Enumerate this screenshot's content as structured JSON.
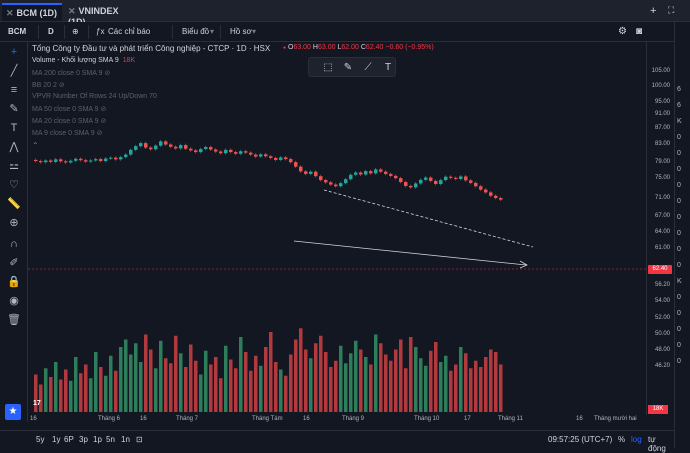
{
  "tabs": [
    {
      "label": "BCM (1D)",
      "active": true
    },
    {
      "label": "VNINDEX (1D)",
      "active": false
    }
  ],
  "topbar": {
    "add_icon": "+",
    "split_icon": "⛶"
  },
  "toolbar": {
    "symbol": "BCM",
    "interval": "D",
    "indicators_label": "Các chỉ báo",
    "chart_type_label": "Biểu đồ",
    "profile_label": "Hồ sơ"
  },
  "legend": {
    "title": "Tổng Công ty Đầu tư và phát triển Công nghiệp - CTCP · 1D · HSX",
    "o_key": "O",
    "o_val": "63.00",
    "h_key": "H",
    "h_val": "63.00",
    "l_key": "L",
    "l_val": "62.00",
    "c_key": "C",
    "c_val": "62.40",
    "change": "−0.60 (−0.95%)"
  },
  "indicators": [
    {
      "label": "Volume - Khối lượng SMA 9",
      "value": "18K",
      "active": true
    },
    {
      "label": "MA 200 close 0 SMA 9",
      "value": "",
      "active": false
    },
    {
      "label": "BB 20 2",
      "value": "",
      "active": false
    },
    {
      "label": "VPVR Number Of Rows 24 Up/Down 70",
      "value": "",
      "active": false
    },
    {
      "label": "MA 50 close 0 SMA 9",
      "value": "",
      "active": false
    },
    {
      "label": "MA 20 close 0 SMA 9",
      "value": "",
      "active": false
    },
    {
      "label": "MA 9 close 0 SMA 9",
      "value": "",
      "active": false
    }
  ],
  "price_axis": [
    "105.00",
    "100.00",
    "95.00",
    "91.00",
    "87.00",
    "83.00",
    "79.00",
    "75.00",
    "71.00",
    "67.00",
    "64.00",
    "61.00",
    "58.00",
    "56.20",
    "54.00",
    "52.00",
    "50.00",
    "48.00",
    "46.20"
  ],
  "current_price": "62.40",
  "volume_badge": "18K",
  "time_axis": [
    "16",
    "Tháng 6",
    "16",
    "Tháng 7",
    "Tháng Tám",
    "16",
    "Tháng 9",
    "Tháng 10",
    "17",
    "Tháng 11",
    "16",
    "Tháng mười hai"
  ],
  "bottom": {
    "ranges": [
      "5y",
      "1y",
      "6P",
      "3p",
      "1p",
      "5n",
      "1n"
    ],
    "clock": "09:57:25 (UTC+7)",
    "pct": "%",
    "log": "log",
    "auto": "tự động"
  },
  "right_strip": [
    "6",
    "6",
    "K",
    "0",
    "0",
    "0",
    "0",
    "0",
    "0",
    "0",
    "0",
    "0",
    "K",
    "0",
    "0",
    "0",
    "0",
    "0"
  ],
  "chart_data": {
    "type": "candlestick",
    "ylim": [
      44,
      107
    ],
    "up_color": "#26a69a",
    "down_color": "#ef5350",
    "close": [
      76.2,
      75.8,
      76.4,
      75.9,
      76.8,
      76.1,
      75.7,
      76.3,
      77.0,
      76.5,
      76.0,
      76.4,
      76.9,
      76.2,
      77.1,
      77.4,
      76.8,
      77.6,
      78.5,
      80.2,
      81.5,
      82.6,
      81.0,
      80.4,
      81.7,
      83.2,
      82.1,
      81.3,
      80.7,
      81.9,
      80.6,
      80.0,
      79.4,
      80.5,
      81.2,
      80.3,
      79.6,
      79.0,
      80.2,
      79.4,
      78.8,
      79.7,
      79.2,
      78.5,
      77.8,
      78.6,
      77.9,
      77.3,
      76.6,
      77.5,
      76.9,
      75.8,
      74.2,
      72.5,
      71.6,
      72.4,
      70.8,
      69.4,
      68.6,
      67.8,
      67.2,
      68.3,
      69.7,
      71.3,
      72.1,
      71.4,
      72.6,
      71.8,
      73.2,
      72.4,
      71.6,
      70.9,
      70.1,
      68.7,
      67.3,
      66.8,
      68.2,
      69.5,
      70.3,
      69.1,
      68.0,
      69.4,
      70.6,
      70.2,
      69.8,
      70.7,
      69.3,
      68.4,
      67.2,
      66.0,
      65.0,
      63.8,
      63.0,
      62.4
    ],
    "volume": [
      30,
      22,
      35,
      28,
      40,
      26,
      34,
      25,
      44,
      31,
      38,
      27,
      48,
      36,
      29,
      45,
      33,
      52,
      58,
      46,
      55,
      40,
      62,
      50,
      35,
      57,
      43,
      39,
      61,
      47,
      36,
      54,
      41,
      30,
      49,
      38,
      44,
      27,
      53,
      42,
      35,
      60,
      48,
      33,
      45,
      37,
      52,
      64,
      40,
      34,
      29,
      46,
      58,
      67,
      50,
      43,
      55,
      61,
      48,
      36,
      41,
      53,
      39,
      47,
      57,
      50,
      44,
      38,
      62,
      55,
      46,
      41,
      50,
      58,
      35,
      60,
      52,
      43,
      37,
      49,
      56,
      40,
      45,
      33,
      38,
      52,
      47,
      35,
      41,
      36,
      44,
      50,
      48,
      38
    ],
    "annotations": {
      "resistance_line": "dashed descending trendline",
      "support_line": "solid descending trendline with arrow"
    }
  }
}
